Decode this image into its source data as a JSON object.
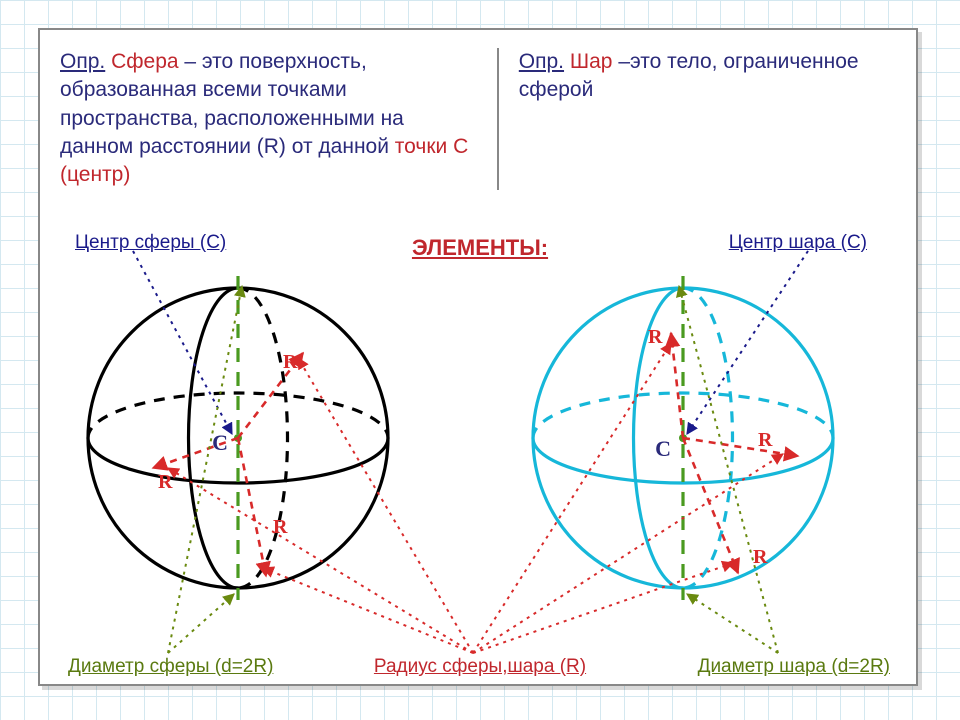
{
  "definitions": {
    "left_prefix": "Опр.",
    "left_keyword": "Сфера",
    "left_text": " – это поверхность, образованная всеми точками пространства, расположенными на данном расстоянии (R) от данной ",
    "left_tail_kw": "точки С (центр)",
    "right_prefix": "Опр.",
    "right_keyword": "Шар",
    "right_text": " –это тело, ограниченное сферой"
  },
  "heading_elements": "ЭЛЕМЕНТЫ:",
  "labels": {
    "center_sphere": "Центр сферы (С)",
    "center_ball": "Центр шара (С)",
    "diam_sphere": "Диаметр сферы (d=2R)",
    "diam_ball": "Диаметр шара (d=2R)",
    "radius": "Радиус сферы,шара (R)",
    "R": "R",
    "C": "С"
  },
  "colors": {
    "grid": "#d4e8f0",
    "sphere_stroke": "#000000",
    "ball_stroke": "#16b7d9",
    "axis_green": "#4a9a20",
    "radius_red": "#d82a2a",
    "ptr_green_dot": "#6a8a10",
    "ptr_red_dot": "#d82a2a",
    "ptr_blue_dot": "#1a1a8a",
    "text_blue": "#2a2a7a"
  },
  "geom": {
    "cx1": 200,
    "cy1": 205,
    "r1": 150,
    "cx2": 645,
    "cy2": 205,
    "r2": 150,
    "ellipse_ry": 45,
    "axis_extra": 12,
    "stroke_main": 3.2,
    "stroke_dash_main": "11 9",
    "stroke_axis": 3.2,
    "stroke_dash_axis": "14 10",
    "stroke_radius": 2.6,
    "stroke_dash_radius": "7 6",
    "dot_pointer": "3 5"
  }
}
